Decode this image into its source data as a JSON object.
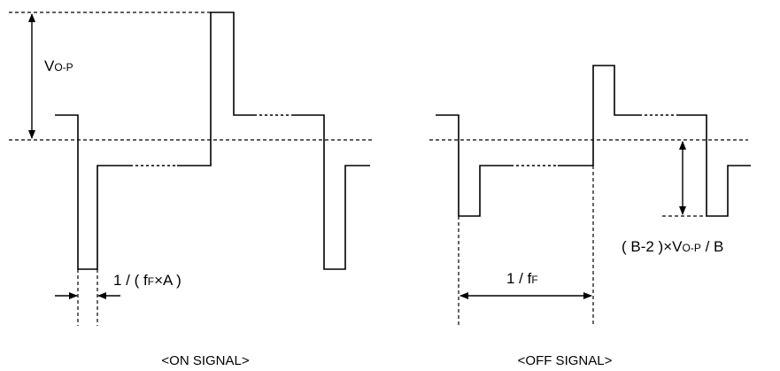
{
  "labels": {
    "vop_main": "V",
    "vop_sub": "O-P",
    "pulse_prefix": "1 / ( f",
    "pulse_sub": "F",
    "pulse_suffix": "×A )",
    "period_prefix": "1 / f",
    "period_sub": "F",
    "amp_prefix": "( B-2 )×V",
    "amp_sub": "O-P",
    "amp_suffix": " / B"
  },
  "captions": {
    "on": "<ON SIGNAL>",
    "off": "<OFF SIGNAL>"
  }
}
